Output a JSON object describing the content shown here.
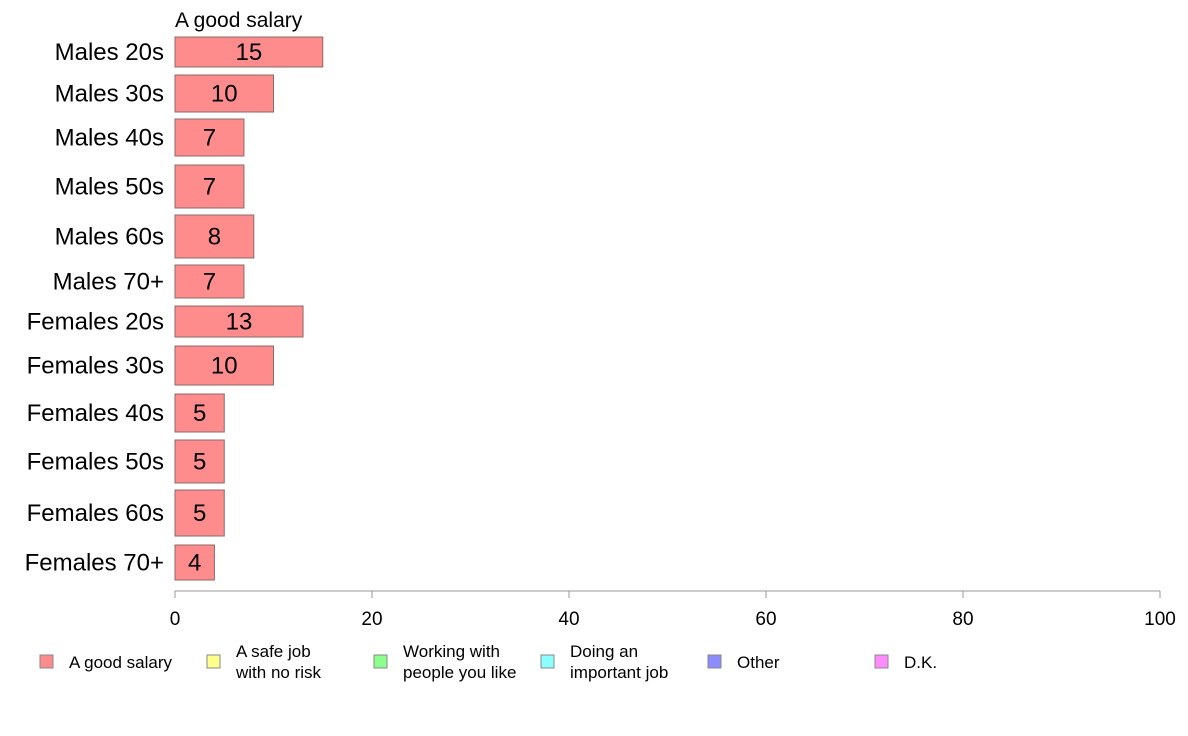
{
  "chart_data": {
    "type": "bar",
    "orientation": "horizontal",
    "title": "",
    "xlabel": "",
    "ylabel": "",
    "xlim": [
      0,
      100
    ],
    "xticks": [
      0,
      20,
      40,
      60,
      80,
      100
    ],
    "grid": false,
    "legend_position": "bottom",
    "categories": [
      "Males 20s",
      "Males 30s",
      "Males 40s",
      "Males 50s",
      "Males 60s",
      "Males 70+",
      "Females 20s",
      "Females 30s",
      "Females 40s",
      "Females 50s",
      "Females 60s",
      "Females 70+"
    ],
    "series": [
      {
        "name": "A good salary",
        "color": "#ff8c8c",
        "values": [
          15,
          10,
          7,
          7,
          8,
          7,
          13,
          10,
          5,
          5,
          5,
          4
        ]
      }
    ],
    "series_label": "A good salary",
    "legend": [
      {
        "lines": [
          "A good salary"
        ],
        "color": "#ff8c8c"
      },
      {
        "lines": [
          "A safe job",
          "with no risk"
        ],
        "color": "#ffff8c"
      },
      {
        "lines": [
          "Working with",
          "people you like"
        ],
        "color": "#8cff8c"
      },
      {
        "lines": [
          "Doing an",
          "important job"
        ],
        "color": "#8cffff"
      },
      {
        "lines": [
          "Other"
        ],
        "color": "#8c8cff"
      },
      {
        "lines": [
          "D.K."
        ],
        "color": "#ff8cff"
      }
    ]
  }
}
